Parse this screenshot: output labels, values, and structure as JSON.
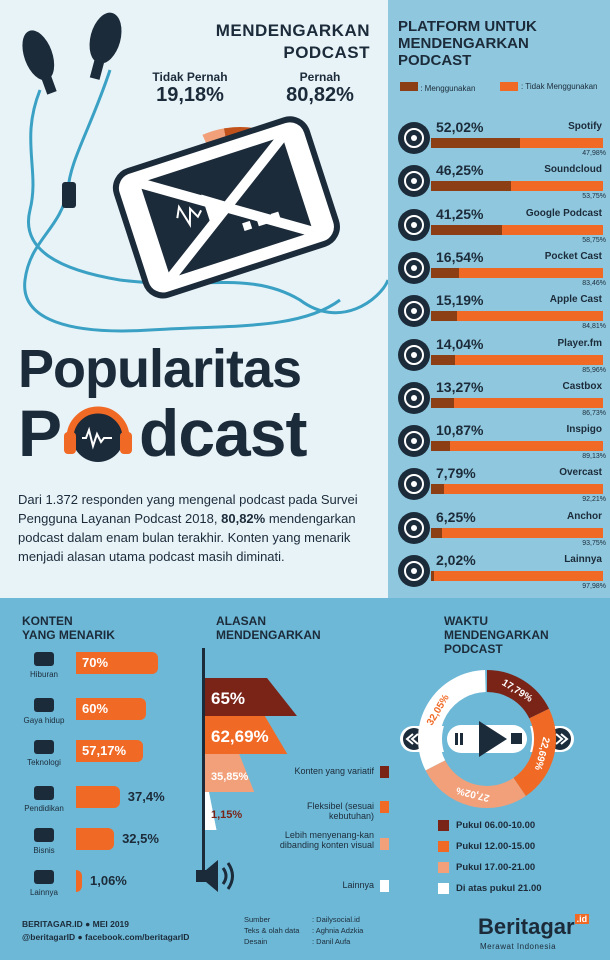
{
  "hero": {
    "title_line1": "MENDENGARKAN",
    "title_line2": "PODCAST",
    "never_label": "Tidak Pernah",
    "never_value": "19,18%",
    "ever_label": "Pernah",
    "ever_value": "80,82%",
    "never_fraction": 0.1918,
    "ever_fraction": 0.8082,
    "big_title_1": "Popularitas",
    "big_title_2_pre": "P",
    "big_title_2_post": "dcast",
    "intro_1": "Dari 1.372 responden yang mengenal podcast pada Survei Pengguna Layanan Podcast 2018, ",
    "intro_bold": "80,82%",
    "intro_2": " mendengarkan podcast dalam enam bulan terakhir. Konten yang menarik menjadi alasan utama podcast masih diminati."
  },
  "platforms": {
    "title": "PLATFORM UNTUK MENDENGARKAN PODCAST",
    "legend_use": ": Menggunakan",
    "legend_not": ": Tidak Menggunakan",
    "color_use": "#8c3f14",
    "color_not": "#f06a25",
    "items": [
      {
        "name": "Spotify",
        "use": "52,02%",
        "not": "47,98%",
        "use_value": 52.02,
        "icon": "spotify-icon"
      },
      {
        "name": "Soundcloud",
        "use": "46,25%",
        "not": "53,75%",
        "use_value": 46.25,
        "icon": "soundcloud-icon"
      },
      {
        "name": "Google Podcast",
        "use": "41,25%",
        "not": "58,75%",
        "use_value": 41.25,
        "icon": "google-podcast-icon"
      },
      {
        "name": "Pocket Cast",
        "use": "16,54%",
        "not": "83,46%",
        "use_value": 16.54,
        "icon": "pocket-cast-icon"
      },
      {
        "name": "Apple Cast",
        "use": "15,19%",
        "not": "84,81%",
        "use_value": 15.19,
        "icon": "apple-podcast-icon"
      },
      {
        "name": "Player.fm",
        "use": "14,04%",
        "not": "85,96%",
        "use_value": 14.04,
        "icon": "player-fm-icon"
      },
      {
        "name": "Castbox",
        "use": "13,27%",
        "not": "86,73%",
        "use_value": 13.27,
        "icon": "castbox-icon"
      },
      {
        "name": "Inspigo",
        "use": "10,87%",
        "not": "89,13%",
        "use_value": 10.87,
        "icon": "inspigo-icon"
      },
      {
        "name": "Overcast",
        "use": "7,79%",
        "not": "92,21%",
        "use_value": 7.79,
        "icon": "overcast-icon"
      },
      {
        "name": "Anchor",
        "use": "6,25%",
        "not": "93,75%",
        "use_value": 6.25,
        "icon": "anchor-icon"
      },
      {
        "name": "Lainnya",
        "use": "2,02%",
        "not": "97,98%",
        "use_value": 2.02,
        "icon": "infinity-icon"
      }
    ]
  },
  "content": {
    "title_1": "KONTEN",
    "title_2": "YANG MENARIK",
    "items": [
      {
        "label": "Hiburan",
        "value": "70%",
        "num": 70,
        "icon": "theater-masks-icon"
      },
      {
        "label": "Gaya hidup",
        "value": "60%",
        "num": 60,
        "icon": "shirt-icon"
      },
      {
        "label": "Teknologi",
        "value": "57,17%",
        "num": 57.17,
        "icon": "laptop-icon"
      },
      {
        "label": "Pendidikan",
        "value": "37,4%",
        "num": 37.4,
        "icon": "graduation-cap-icon"
      },
      {
        "label": "Bisnis",
        "value": "32,5%",
        "num": 32.5,
        "icon": "chart-dollar-icon"
      },
      {
        "label": "Lainnya",
        "value": "1,06%",
        "num": 1.06,
        "icon": "arrow-right-icon"
      }
    ]
  },
  "reasons": {
    "title_1": "ALASAN",
    "title_2": "MENDENGARKAN",
    "items": [
      {
        "value": "65%",
        "num": 65,
        "color": "#7a2418",
        "label": "Konten yang variatif"
      },
      {
        "value": "62,69%",
        "num": 62.69,
        "color": "#f06a25",
        "label": "Fleksibel (sesuai kebutuhan)"
      },
      {
        "value": "35,85%",
        "num": 35.85,
        "color": "#f2a07a",
        "label": "Lebih menyenang-kan dibanding konten visual"
      },
      {
        "value": "1,15%",
        "num": 1.15,
        "color": "#ffffff",
        "label": "Lainnya"
      }
    ]
  },
  "time": {
    "title_1": "WAKTU",
    "title_2": "MENDENGARKAN",
    "title_3": "PODCAST",
    "segments": [
      {
        "value": "17,79%",
        "num": 17.79,
        "color": "#7a2418",
        "label": "Pukul 06.00-10.00"
      },
      {
        "value": "22,69%",
        "num": 22.69,
        "color": "#f06a25",
        "label": "Pukul 12.00-15.00"
      },
      {
        "value": "27,02%",
        "num": 27.02,
        "color": "#f2a07a",
        "label": "Pukul 17.00-21.00"
      },
      {
        "value": "32,05%",
        "num": 32.05,
        "color": "#ffffff",
        "label": "Di atas pukul 21.00"
      }
    ]
  },
  "footer": {
    "line1": "BERITAGAR.ID  ●  MEI 2019",
    "line2": "@beritagarID  ●  facebook.com/beritagarID",
    "credits_labels": [
      "Sumber",
      "Teks & olah data",
      "Desain"
    ],
    "credits_values": [
      ": Dailysocial.id",
      ": Aghnia Adzkia",
      ": Danil Aufa"
    ],
    "brand": "Beritagar",
    "brand_suffix": ".id",
    "tagline": "Merawat Indonesia"
  }
}
